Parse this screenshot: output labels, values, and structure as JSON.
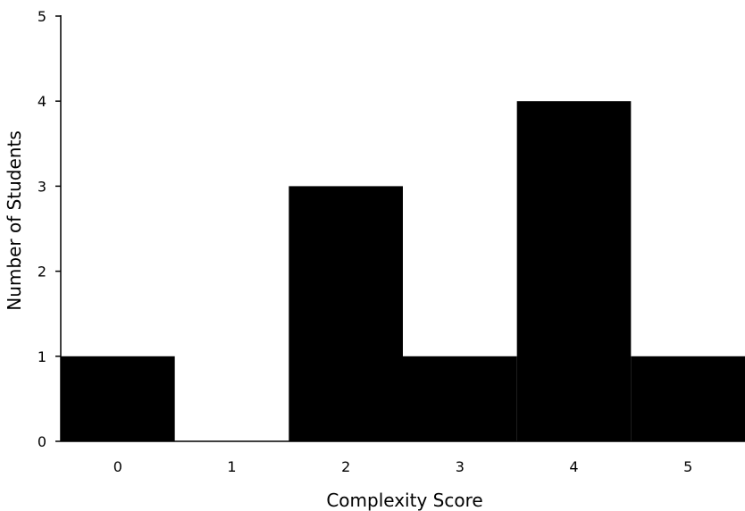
{
  "chart_data": {
    "type": "bar",
    "title": "",
    "xlabel": "Complexity Score",
    "ylabel": "Number of Students",
    "categories": [
      "0",
      "1",
      "2",
      "3",
      "4",
      "5"
    ],
    "values": [
      1,
      0,
      3,
      1,
      4,
      1
    ],
    "ylim": [
      0,
      5
    ],
    "yticks": [
      "0",
      "1",
      "2",
      "3",
      "4",
      "5"
    ],
    "grid": false,
    "legend": "none",
    "bar_color": "#000000",
    "axis_color": "#000000"
  }
}
